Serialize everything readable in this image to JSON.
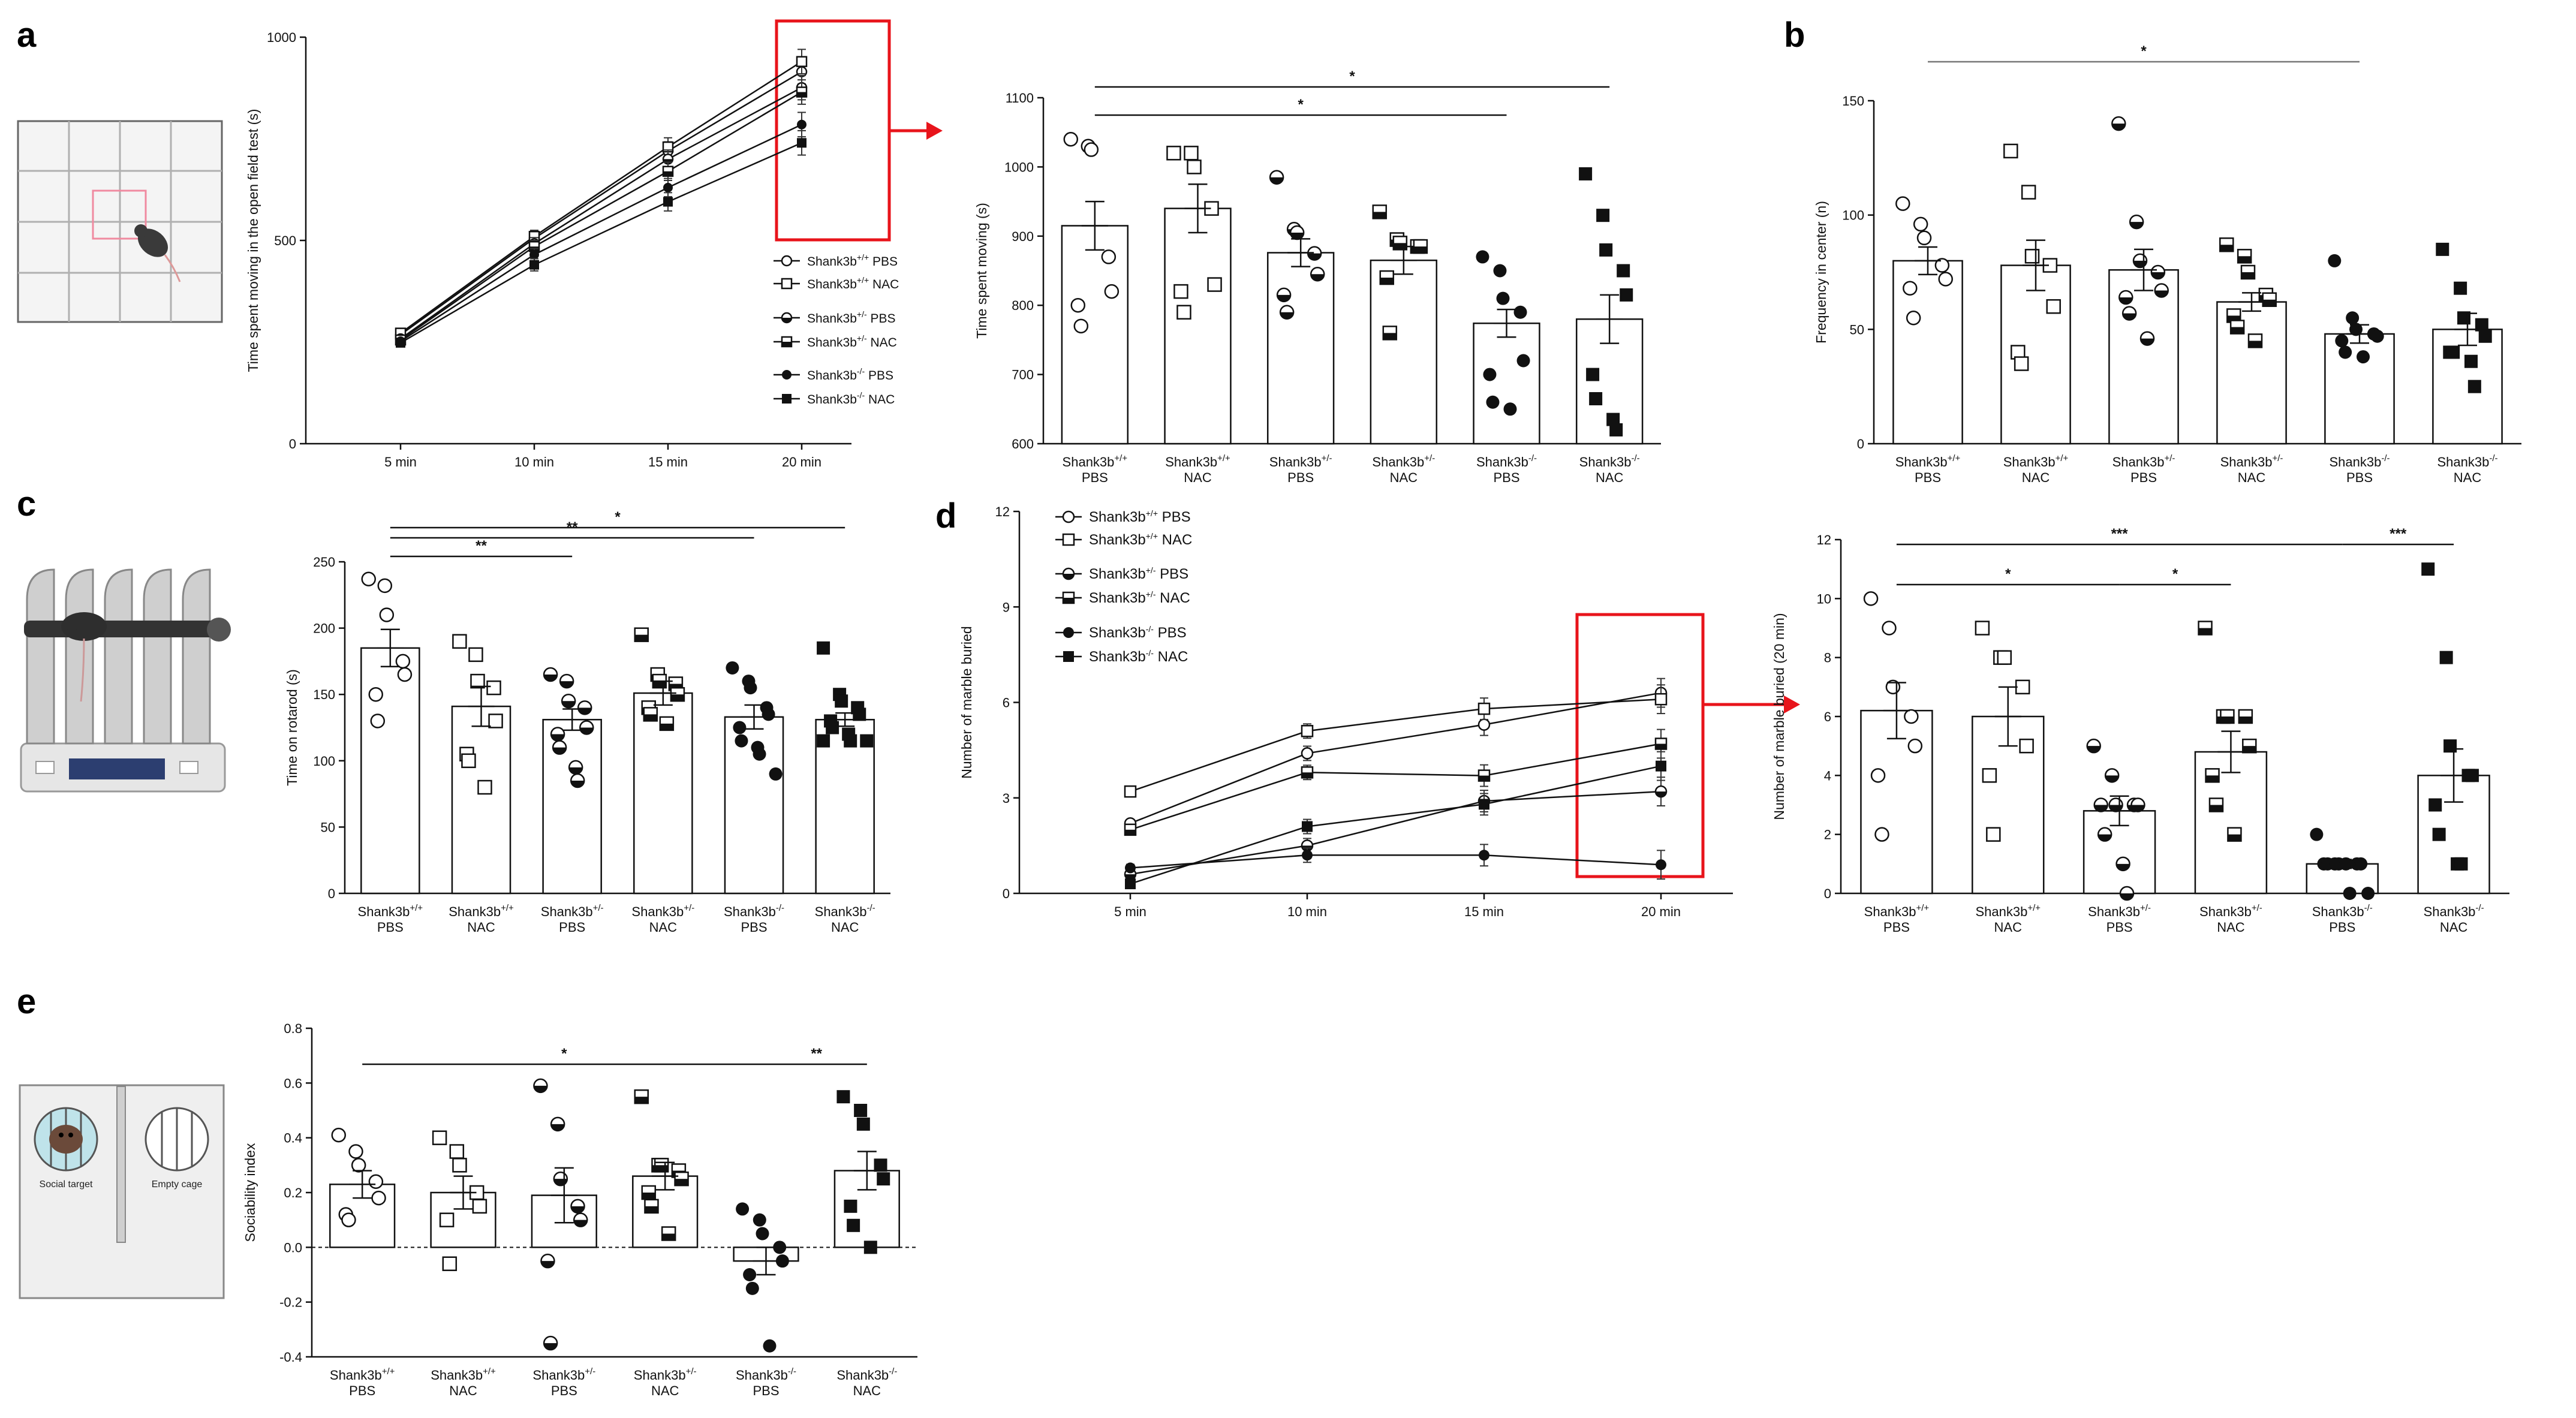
{
  "panel_letters": {
    "a": "a",
    "b": "b",
    "c": "c",
    "d": "d",
    "e": "e"
  },
  "illustrations": {
    "sociability_social_target": "Social target",
    "sociability_empty_cage": "Empty cage"
  },
  "groups": {
    "labels": [
      "Shank3b+/+ PBS",
      "Shank3b+/+ NAC",
      "Shank3b+/- PBS",
      "Shank3b+/- NAC",
      "Shank3b-/- PBS",
      "Shank3b-/- NAC"
    ],
    "geno": [
      "+/+",
      "+/+",
      "+/-",
      "+/-",
      "-/-",
      "-/-"
    ],
    "treat": [
      "PBS",
      "NAC",
      "PBS",
      "NAC",
      "PBS",
      "NAC"
    ],
    "prefix": "Shank3b"
  },
  "colors": {
    "highlight": "#e8141b",
    "ink": "#111111",
    "fill": "#ffffff"
  },
  "chart_data": [
    {
      "id": "a-line",
      "type": "line",
      "title": "",
      "xlabel": "",
      "ylabel": "Time spent moving in the open field test (s)",
      "categories": [
        "5 min",
        "10 min",
        "15 min",
        "20 min"
      ],
      "ylim": [
        0,
        1000
      ],
      "yticks": [
        0,
        500,
        1000
      ],
      "series": [
        {
          "name": "Shank3b+/+ PBS",
          "values": [
            268,
            505,
            720,
            915
          ]
        },
        {
          "name": "Shank3b+/+ NAC",
          "values": [
            272,
            510,
            730,
            940
          ]
        },
        {
          "name": "Shank3b+/- PBS",
          "values": [
            258,
            492,
            700,
            876
          ]
        },
        {
          "name": "Shank3b+/- NAC",
          "values": [
            255,
            485,
            670,
            865
          ]
        },
        {
          "name": "Shank3b-/- PBS",
          "values": [
            252,
            465,
            630,
            785
          ]
        },
        {
          "name": "Shank3b-/- NAC",
          "values": [
            248,
            440,
            595,
            740
          ]
        }
      ],
      "legend": [
        "Shank3b+/+ PBS",
        "Shank3b+/+ NAC",
        "Shank3b+/- PBS",
        "Shank3b+/- NAC",
        "Shank3b-/- PBS",
        "Shank3b-/- NAC"
      ]
    },
    {
      "id": "a-bar",
      "type": "bar",
      "title": "",
      "ylabel": "Time spent moving (s)",
      "categories": [
        "Shank3b+/+ PBS",
        "Shank3b+/+ NAC",
        "Shank3b+/- PBS",
        "Shank3b+/- NAC",
        "Shank3b-/- PBS",
        "Shank3b-/- NAC"
      ],
      "values": [
        915,
        940,
        876,
        865,
        774,
        780
      ],
      "sem": [
        35,
        35,
        20,
        20,
        20,
        35
      ],
      "ylim": [
        600,
        1100
      ],
      "yticks": [
        600,
        700,
        800,
        900,
        1000,
        1100
      ],
      "points": [
        [
          1040,
          1030,
          1025,
          870,
          820,
          800,
          770
        ],
        [
          1020,
          1020,
          1000,
          940,
          830,
          820,
          790
        ],
        [
          985,
          910,
          905,
          875,
          845,
          815,
          790
        ],
        [
          935,
          895,
          890,
          885,
          885,
          840,
          760
        ],
        [
          870,
          850,
          810,
          790,
          720,
          700,
          660,
          650
        ],
        [
          990,
          930,
          880,
          850,
          815,
          700,
          665,
          635,
          620
        ]
      ],
      "significance": [
        {
          "from": 0,
          "to": 5,
          "label": "*"
        },
        {
          "from": 0,
          "to": 4,
          "label": "*"
        }
      ]
    },
    {
      "id": "b-bar",
      "type": "bar",
      "ylabel": "Frequency in center (n)",
      "categories": [
        "Shank3b+/+ PBS",
        "Shank3b+/+ NAC",
        "Shank3b+/- PBS",
        "Shank3b+/- NAC",
        "Shank3b-/- PBS",
        "Shank3b-/- NAC"
      ],
      "values": [
        80,
        78,
        76,
        62,
        48,
        50
      ],
      "sem": [
        6,
        11,
        9,
        4,
        4,
        7
      ],
      "ylim": [
        0,
        150
      ],
      "yticks": [
        0,
        50,
        100,
        150
      ],
      "points": [
        [
          105,
          96,
          90,
          78,
          72,
          68,
          55
        ],
        [
          128,
          110,
          82,
          78,
          60,
          40,
          35
        ],
        [
          140,
          97,
          80,
          75,
          67,
          64,
          57,
          46
        ],
        [
          87,
          82,
          75,
          65,
          63,
          56,
          51,
          45
        ],
        [
          80,
          55,
          50,
          48,
          47,
          45,
          40,
          38
        ],
        [
          85,
          68,
          55,
          52,
          47,
          40,
          40,
          36,
          25
        ]
      ],
      "significance": [
        {
          "from": 0,
          "to": 4,
          "label": "*"
        }
      ]
    },
    {
      "id": "c-bar",
      "type": "bar",
      "ylabel": "Time on rotarod (s)",
      "categories": [
        "Shank3b+/+ PBS",
        "Shank3b+/+ NAC",
        "Shank3b+/- PBS",
        "Shank3b+/- NAC",
        "Shank3b-/- PBS",
        "Shank3b-/- NAC"
      ],
      "values": [
        185,
        141,
        131,
        151,
        133,
        131
      ],
      "sem": [
        14,
        15,
        8,
        9,
        9,
        5
      ],
      "ylim": [
        0,
        250
      ],
      "yticks": [
        0,
        50,
        100,
        150,
        200,
        250
      ],
      "points": [
        [
          237,
          232,
          210,
          175,
          165,
          150,
          130
        ],
        [
          190,
          180,
          160,
          155,
          130,
          105,
          100,
          80
        ],
        [
          165,
          160,
          145,
          140,
          125,
          120,
          110,
          95,
          85
        ],
        [
          195,
          165,
          160,
          158,
          150,
          140,
          135,
          128
        ],
        [
          170,
          160,
          155,
          140,
          135,
          125,
          115,
          110,
          105,
          90
        ],
        [
          185,
          150,
          145,
          140,
          135,
          130,
          125,
          120,
          115,
          115,
          115
        ]
      ],
      "significance": [
        {
          "from": 0,
          "to": 2,
          "label": "**"
        },
        {
          "from": 0,
          "to": 4,
          "label": "**"
        },
        {
          "from": 0,
          "to": 5,
          "label": "*"
        }
      ]
    },
    {
      "id": "d-line",
      "type": "line",
      "ylabel": "Number of marble buried",
      "categories": [
        "5 min",
        "10 min",
        "15 min",
        "20 min"
      ],
      "ylim": [
        0,
        12
      ],
      "yticks": [
        0,
        3,
        6,
        9,
        12
      ],
      "series": [
        {
          "name": "Shank3b+/+ PBS",
          "values": [
            2.2,
            4.4,
            5.3,
            6.3
          ]
        },
        {
          "name": "Shank3b+/+ NAC",
          "values": [
            3.2,
            5.1,
            5.8,
            6.1
          ]
        },
        {
          "name": "Shank3b+/- PBS",
          "values": [
            0.6,
            1.5,
            2.9,
            3.2
          ]
        },
        {
          "name": "Shank3b+/- NAC",
          "values": [
            2.0,
            3.8,
            3.7,
            4.7
          ]
        },
        {
          "name": "Shank3b-/- PBS",
          "values": [
            0.8,
            1.2,
            1.2,
            0.9
          ]
        },
        {
          "name": "Shank3b-/- NAC",
          "values": [
            0.3,
            2.1,
            2.8,
            4.0
          ]
        }
      ],
      "legend": [
        "Shank3b+/+ PBS",
        "Shank3b+/+ NAC",
        "Shank3b+/- PBS",
        "Shank3b+/- NAC",
        "Shank3b-/- PBS",
        "Shank3b-/- NAC"
      ]
    },
    {
      "id": "d-bar",
      "type": "bar",
      "ylabel": "Number of marble buried (20 min)",
      "categories": [
        "Shank3b+/+ PBS",
        "Shank3b+/+ NAC",
        "Shank3b+/- PBS",
        "Shank3b+/- NAC",
        "Shank3b-/- PBS",
        "Shank3b-/- NAC"
      ],
      "values": [
        6.2,
        6.0,
        2.8,
        4.8,
        1.0,
        4.0
      ],
      "sem": [
        0.95,
        1.0,
        0.5,
        0.7,
        0.15,
        0.9
      ],
      "ylim": [
        0,
        12
      ],
      "yticks": [
        0,
        2,
        4,
        6,
        8,
        10,
        12
      ],
      "points": [
        [
          10,
          9,
          7,
          6,
          5,
          4,
          2
        ],
        [
          9,
          8,
          8,
          7,
          5,
          4,
          2
        ],
        [
          5,
          4,
          3,
          3,
          3,
          3,
          2,
          1,
          0
        ],
        [
          9,
          6,
          6,
          6,
          5,
          4,
          3,
          2
        ],
        [
          2,
          1,
          1,
          1,
          1,
          1,
          1,
          1,
          0,
          0
        ],
        [
          11,
          8,
          5,
          4,
          4,
          3,
          2,
          1,
          1
        ]
      ],
      "significance": [
        {
          "from": 0,
          "to": 4,
          "label": "***"
        },
        {
          "from": 4,
          "to": 5,
          "label": "***"
        },
        {
          "from": 0,
          "to": 2,
          "label": "*"
        },
        {
          "from": 2,
          "to": 3,
          "label": "*"
        }
      ]
    },
    {
      "id": "e-bar",
      "type": "bar",
      "ylabel": "Sociability index",
      "categories": [
        "Shank3b+/+ PBS",
        "Shank3b+/+ NAC",
        "Shank3b+/- PBS",
        "Shank3b+/- NAC",
        "Shank3b-/- PBS",
        "Shank3b-/- NAC"
      ],
      "values": [
        0.23,
        0.2,
        0.19,
        0.26,
        -0.05,
        0.28
      ],
      "sem": [
        0.05,
        0.06,
        0.1,
        0.05,
        0.05,
        0.07
      ],
      "ylim": [
        -0.4,
        0.8
      ],
      "yticks": [
        -0.4,
        -0.2,
        0.0,
        0.2,
        0.4,
        0.6,
        0.8
      ],
      "points": [
        [
          0.41,
          0.35,
          0.3,
          0.24,
          0.18,
          0.12,
          0.1
        ],
        [
          0.4,
          0.35,
          0.3,
          0.2,
          0.15,
          0.1,
          -0.06
        ],
        [
          0.59,
          0.45,
          0.25,
          0.15,
          0.1,
          -0.05,
          -0.35
        ],
        [
          0.55,
          0.3,
          0.3,
          0.28,
          0.25,
          0.2,
          0.15,
          0.05
        ],
        [
          0.14,
          0.1,
          0.05,
          0.0,
          -0.05,
          -0.1,
          -0.15,
          -0.36
        ],
        [
          0.55,
          0.5,
          0.45,
          0.3,
          0.25,
          0.15,
          0.08,
          0.0
        ]
      ],
      "significance": [
        {
          "from": 0,
          "to": 4,
          "label": "*"
        },
        {
          "from": 4,
          "to": 5,
          "label": "**"
        }
      ]
    }
  ]
}
